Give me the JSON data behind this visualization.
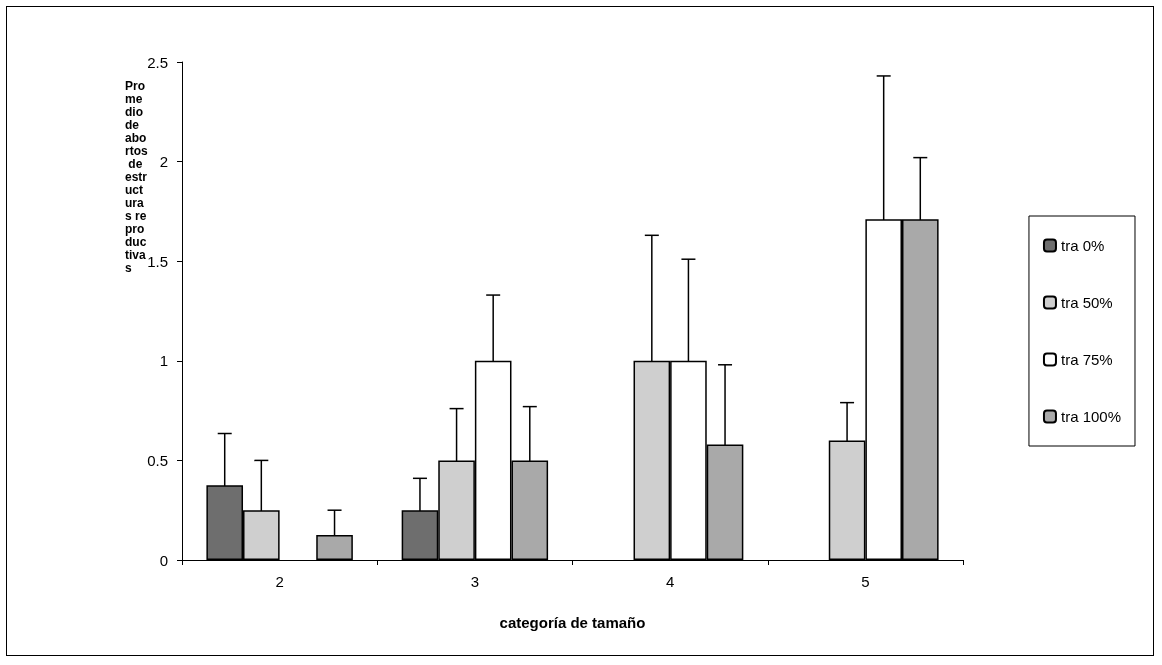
{
  "chart_data": {
    "type": "bar",
    "xlabel": "categoría de tamaño",
    "ylabel": "Promedio de abortos de estructuras reproductivas",
    "categories": [
      "2",
      "3",
      "4",
      "5"
    ],
    "series": [
      {
        "name": "tra 0%",
        "color": "#6e6e6e",
        "values": [
          0.375,
          0.25,
          null,
          null
        ],
        "errors": [
          0.26,
          0.16,
          null,
          null
        ]
      },
      {
        "name": "tra 50%",
        "color": "#cfcfcf",
        "values": [
          0.25,
          0.5,
          1.0,
          0.6
        ],
        "errors": [
          0.25,
          0.26,
          0.63,
          0.19
        ]
      },
      {
        "name": "tra 75%",
        "color": "#ffffff",
        "values": [
          null,
          1.0,
          1.0,
          1.71
        ],
        "errors": [
          null,
          0.33,
          0.51,
          0.72
        ]
      },
      {
        "name": "tra 100%",
        "color": "#a9a9a9",
        "values": [
          0.125,
          0.5,
          0.58,
          1.71
        ],
        "errors": [
          0.125,
          0.27,
          0.4,
          0.31
        ]
      }
    ],
    "ylim": [
      0,
      2.5
    ],
    "yticks": [
      0,
      0.5,
      1,
      1.5,
      2,
      2.5
    ],
    "grid": false,
    "legend": "right"
  }
}
